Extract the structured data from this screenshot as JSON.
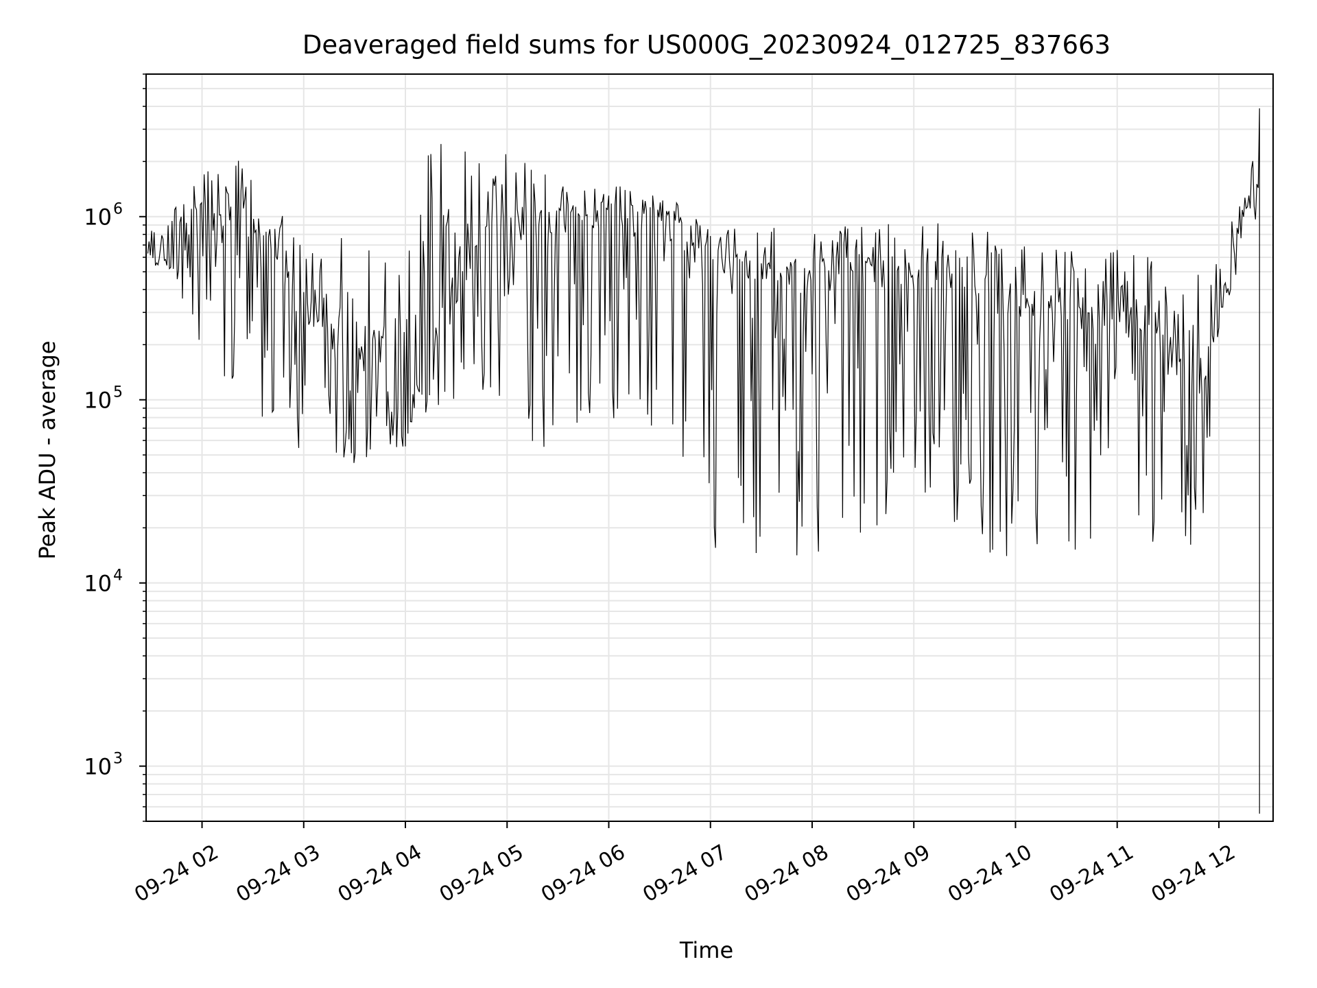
{
  "chart_data": {
    "type": "line",
    "title": "Deaveraged field sums for US000G_20230924_012725_837663",
    "xlabel": "Time",
    "ylabel": "Peak ADU - average",
    "y_scale": "log",
    "ylim": [
      500,
      6000000
    ],
    "xlim": [
      "2023-09-24 01:27",
      "2023-09-24 12:32"
    ],
    "grid": true,
    "line_color": "#000000",
    "grid_color": "#e6e6e6",
    "x_tick_labels": [
      "09-24 02",
      "09-24 03",
      "09-24 04",
      "09-24 05",
      "09-24 06",
      "09-24 07",
      "09-24 08",
      "09-24 09",
      "09-24 10",
      "09-24 11",
      "09-24 12"
    ],
    "x_ticks": [
      "2023-09-24 02:00",
      "2023-09-24 03:00",
      "2023-09-24 04:00",
      "2023-09-24 05:00",
      "2023-09-24 06:00",
      "2023-09-24 07:00",
      "2023-09-24 08:00",
      "2023-09-24 09:00",
      "2023-09-24 10:00",
      "2023-09-24 11:00",
      "2023-09-24 12:00"
    ],
    "y_ticks": [
      1000,
      10000,
      100000,
      1000000
    ],
    "y_tick_labels": [
      {
        "base": "10",
        "exp": "3"
      },
      {
        "base": "10",
        "exp": "4"
      },
      {
        "base": "10",
        "exp": "5"
      },
      {
        "base": "10",
        "exp": "6"
      }
    ],
    "series": [
      {
        "x": [
          "2023-09-24 01:28",
          "2023-09-24 01:40",
          "2023-09-24 01:50",
          "2023-09-24 02:05",
          "2023-09-24 02:20",
          "2023-09-24 02:40",
          "2023-09-24 03:00",
          "2023-09-24 03:20",
          "2023-09-24 03:40",
          "2023-09-24 04:00",
          "2023-09-24 04:15",
          "2023-09-24 04:30",
          "2023-09-24 05:00",
          "2023-09-24 05:30",
          "2023-09-24 06:00",
          "2023-09-24 06:20",
          "2023-09-24 06:40",
          "2023-09-24 06:50",
          "2023-09-24 07:00",
          "2023-09-24 07:30",
          "2023-09-24 08:00",
          "2023-09-24 08:30",
          "2023-09-24 09:00",
          "2023-09-24 09:30",
          "2023-09-24 10:00",
          "2023-09-24 10:30",
          "2023-09-24 11:00",
          "2023-09-24 11:30",
          "2023-09-24 11:50",
          "2023-09-24 12:00",
          "2023-09-24 12:10",
          "2023-09-24 12:20",
          "2023-09-24 12:24"
        ],
        "y": [
          700000,
          650000,
          1000000,
          900000,
          1200000,
          700000,
          300000,
          200000,
          150000,
          70000,
          200000,
          500000,
          900000,
          1000000,
          1100000,
          1000000,
          900000,
          700000,
          600000,
          500000,
          500000,
          500000,
          500000,
          450000,
          350000,
          300000,
          300000,
          200000,
          100000,
          300000,
          600000,
          1500000,
          600000
        ],
        "y_high": [
          850000,
          900000,
          1600000,
          1800000,
          2200000,
          1200000,
          900000,
          800000,
          700000,
          1000000,
          2500000,
          2500000,
          2800000,
          1500000,
          1500000,
          1400000,
          1200000,
          1000000,
          950000,
          900000,
          900000,
          950000,
          950000,
          900000,
          850000,
          800000,
          700000,
          600000,
          500000,
          700000,
          1100000,
          2300000,
          3900000
        ],
        "y_low": [
          550000,
          500000,
          300000,
          150000,
          100000,
          60000,
          50000,
          45000,
          45000,
          50000,
          90000,
          100000,
          70000,
          50000,
          50000,
          60000,
          60000,
          30000,
          15000,
          14000,
          14000,
          14000,
          14000,
          14000,
          13000,
          13000,
          13000,
          13000,
          14000,
          200000,
          400000,
          800000,
          550
        ]
      }
    ]
  }
}
